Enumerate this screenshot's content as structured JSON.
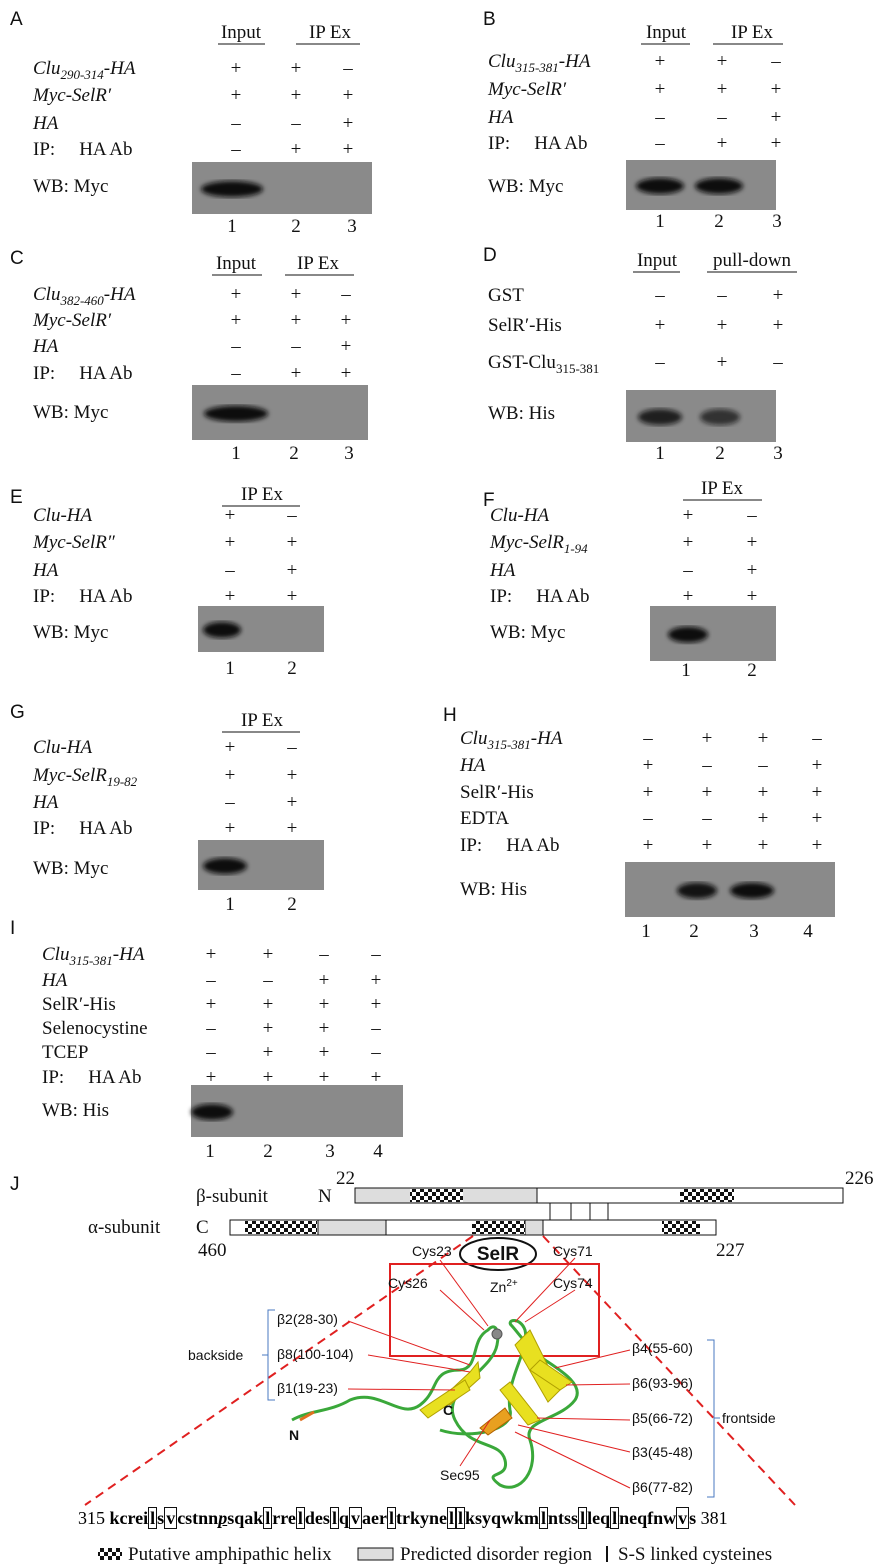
{
  "panels": [
    {
      "letter": "A",
      "headers": [
        "Input",
        "IP Ex"
      ],
      "rows": [
        {
          "label": {
            "main": "Clu",
            "sub": "290-314",
            "tail": "-HA"
          },
          "signs": [
            "+",
            "+",
            "–"
          ]
        },
        {
          "label": "Myc-SelR′",
          "signs": [
            "+",
            "+",
            "+"
          ]
        },
        {
          "label": "HA",
          "signs": [
            "–",
            "–",
            "+"
          ]
        },
        {
          "label": {
            "main": "IP:",
            "tail": "HA Ab"
          },
          "signs": [
            "–",
            "+",
            "+"
          ]
        }
      ],
      "wb": "WB: Myc",
      "lanes": [
        1,
        2,
        3
      ]
    },
    {
      "letter": "B",
      "headers": [
        "Input",
        "IP Ex"
      ],
      "rows": [
        {
          "label": {
            "main": "Clu",
            "sub": "315-381",
            "tail": "-HA"
          },
          "signs": [
            "+",
            "+",
            "–"
          ]
        },
        {
          "label": "Myc-SelR′",
          "signs": [
            "+",
            "+",
            "+"
          ]
        },
        {
          "label": "HA",
          "signs": [
            "–",
            "–",
            "+"
          ]
        },
        {
          "label": {
            "main": "IP:",
            "tail": "HA Ab"
          },
          "signs": [
            "–",
            "+",
            "+"
          ]
        }
      ],
      "wb": "WB: Myc",
      "lanes": [
        1,
        2,
        3
      ]
    },
    {
      "letter": "C",
      "headers": [
        "Input",
        "IP Ex"
      ],
      "rows": [
        {
          "label": {
            "main": "Clu",
            "sub": "382-460",
            "tail": "-HA"
          },
          "signs": [
            "+",
            "+",
            "–"
          ]
        },
        {
          "label": "Myc-SelR′",
          "signs": [
            "+",
            "+",
            "+"
          ]
        },
        {
          "label": "HA",
          "signs": [
            "–",
            "–",
            "+"
          ]
        },
        {
          "label": {
            "main": "IP:",
            "tail": "HA Ab"
          },
          "signs": [
            "–",
            "+",
            "+"
          ]
        }
      ],
      "wb": "WB: Myc",
      "lanes": [
        1,
        2,
        3
      ]
    },
    {
      "letter": "D",
      "headers": [
        "Input",
        "pull-down"
      ],
      "rows": [
        {
          "label": "GST",
          "signs": [
            "–",
            "–",
            "+"
          ]
        },
        {
          "label": "SelR′-His",
          "signs": [
            "+",
            "+",
            "+"
          ]
        },
        {
          "label": {
            "main": "GST-Clu",
            "sub": "315-381"
          },
          "signs": [
            "–",
            "+",
            "–"
          ]
        }
      ],
      "wb": "WB: His",
      "lanes": [
        1,
        2,
        3
      ]
    },
    {
      "letter": "E",
      "headers": [
        "IP Ex"
      ],
      "rows": [
        {
          "label": "Clu-HA",
          "signs": [
            "+",
            "–"
          ]
        },
        {
          "label": "Myc-SelR″",
          "signs": [
            "+",
            "+"
          ]
        },
        {
          "label": "HA",
          "signs": [
            "–",
            "+"
          ]
        },
        {
          "label": {
            "main": "IP:",
            "tail": "HA Ab"
          },
          "signs": [
            "+",
            "+"
          ]
        }
      ],
      "wb": "WB: Myc",
      "lanes": [
        1,
        2
      ]
    },
    {
      "letter": "F",
      "headers": [
        "IP Ex"
      ],
      "rows": [
        {
          "label": "Clu-HA",
          "signs": [
            "+",
            "–"
          ]
        },
        {
          "label": {
            "main": "Myc-SelR",
            "sub": "1-94"
          },
          "signs": [
            "+",
            "+"
          ]
        },
        {
          "label": "HA",
          "signs": [
            "–",
            "+"
          ]
        },
        {
          "label": {
            "main": "IP:",
            "tail": "HA Ab"
          },
          "signs": [
            "+",
            "+"
          ]
        }
      ],
      "wb": "WB: Myc",
      "lanes": [
        1,
        2
      ]
    },
    {
      "letter": "G",
      "headers": [
        "IP Ex"
      ],
      "rows": [
        {
          "label": "Clu-HA",
          "signs": [
            "+",
            "–"
          ]
        },
        {
          "label": {
            "main": "Myc-SelR",
            "sub": "19-82"
          },
          "signs": [
            "+",
            "+"
          ]
        },
        {
          "label": "HA",
          "signs": [
            "–",
            "+"
          ]
        },
        {
          "label": {
            "main": "IP:",
            "tail": "HA Ab"
          },
          "signs": [
            "+",
            "+"
          ]
        }
      ],
      "wb": "WB: Myc",
      "lanes": [
        1,
        2
      ]
    },
    {
      "letter": "H",
      "headers": [],
      "rows": [
        {
          "label": {
            "main": "Clu",
            "sub": "315-381",
            "tail": "-HA"
          },
          "signs": [
            "–",
            "+",
            "+",
            "–"
          ]
        },
        {
          "label": "HA",
          "signs": [
            "+",
            "–",
            "–",
            "+"
          ]
        },
        {
          "label": "SelR′-His",
          "signs": [
            "+",
            "+",
            "+",
            "+"
          ]
        },
        {
          "label": "EDTA",
          "signs": [
            "–",
            "–",
            "+",
            "+"
          ]
        },
        {
          "label": {
            "main": "IP:",
            "tail": "HA Ab"
          },
          "signs": [
            "+",
            "+",
            "+",
            "+"
          ]
        }
      ],
      "wb": "WB: His",
      "lanes": [
        1,
        2,
        3,
        4
      ]
    },
    {
      "letter": "I",
      "headers": [],
      "rows": [
        {
          "label": {
            "main": "Clu",
            "sub": "315-381",
            "tail": "-HA"
          },
          "signs": [
            "+",
            "+",
            "–",
            "–"
          ]
        },
        {
          "label": "HA",
          "signs": [
            "–",
            "–",
            "+",
            "+"
          ]
        },
        {
          "label": "SelR′-His",
          "signs": [
            "+",
            "+",
            "+",
            "+"
          ]
        },
        {
          "label": "Selenocystine",
          "signs": [
            "–",
            "+",
            "+",
            "–"
          ]
        },
        {
          "label": "TCEP",
          "signs": [
            "–",
            "+",
            "+",
            "–"
          ]
        },
        {
          "label": {
            "main": "IP:",
            "tail": "HA Ab"
          },
          "signs": [
            "+",
            "+",
            "+",
            "+"
          ]
        }
      ],
      "wb": "WB: His",
      "lanes": [
        1,
        2,
        3,
        4
      ]
    }
  ],
  "panel_j": {
    "letter": "J",
    "beta_label": "β-subunit",
    "beta_n": "N",
    "beta_start": 22,
    "beta_end": 226,
    "alpha_label": "α-subunit",
    "alpha_c": "C",
    "alpha_start": 460,
    "alpha_end": 227,
    "domain": "SelR",
    "zinc": {
      "main": "Zn",
      "sup": "2+"
    },
    "cysteines": [
      "Cys23",
      "Cys26",
      "Cys71",
      "Cys74"
    ],
    "back_strands": [
      "β2(28-30)",
      "β8(100-104)",
      "β1(19-23)"
    ],
    "backside": "backside",
    "front_strands": [
      "β4(55-60)",
      "β6(93-96)",
      "β5(66-72)",
      "β3(45-48)",
      "β6(77-82)"
    ],
    "frontside": "frontside",
    "n_term": "N",
    "c_term": "C",
    "sec": "Sec95",
    "seq_start": 315,
    "seq_end": 381,
    "sequence": [
      {
        "text": "kcrei"
      },
      {
        "text": "l",
        "boxed": true
      },
      {
        "text": "s"
      },
      {
        "text": "v",
        "boxed": true
      },
      {
        "text": "cstnn"
      },
      {
        "text": "p",
        "italic": true
      },
      {
        "text": "sqak"
      },
      {
        "text": "l",
        "boxed": true
      },
      {
        "text": "rre"
      },
      {
        "text": "l",
        "boxed": true
      },
      {
        "text": "des"
      },
      {
        "text": "l",
        "boxed": true
      },
      {
        "text": "q"
      },
      {
        "text": "v",
        "boxed": true
      },
      {
        "text": "aer"
      },
      {
        "text": "l",
        "boxed": true
      },
      {
        "text": "trkyne"
      },
      {
        "text": "l",
        "boxed": true
      },
      {
        "text": "l",
        "boxed": true
      },
      {
        "text": "ksyqwkm"
      },
      {
        "text": "l",
        "boxed": true
      },
      {
        "text": "ntss"
      },
      {
        "text": "l",
        "boxed": true
      },
      {
        "text": "leq"
      },
      {
        "text": "l",
        "boxed": true
      },
      {
        "text": "neqfnw"
      },
      {
        "text": "v",
        "boxed": true
      },
      {
        "text": "s"
      }
    ],
    "legend": [
      "Putative amphipathic helix",
      "Predicted disorder region",
      "S-S linked cysteines"
    ]
  }
}
